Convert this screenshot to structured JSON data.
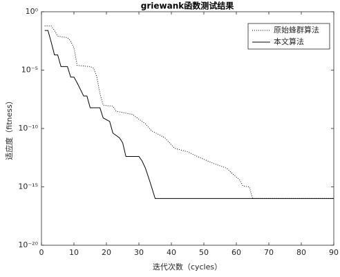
{
  "chart_data": {
    "type": "line",
    "title": "griewank函数测试结果",
    "x_label": "迭代次数（cycles）",
    "y_label": "适应度（fitness）",
    "log_y": true,
    "legend": "upper right",
    "xlim": [
      0,
      90
    ],
    "xticks": [
      0,
      10,
      20,
      30,
      40,
      50,
      60,
      70,
      80,
      90
    ],
    "ylim": [
      1e-20,
      1
    ],
    "yticks": [
      {
        "value": 1,
        "label": "10⁰"
      },
      {
        "value": 1e-05,
        "label": "10⁻⁵"
      },
      {
        "value": 1e-10,
        "label": "10⁻¹⁰"
      },
      {
        "value": 1e-15,
        "label": "10⁻¹⁵"
      },
      {
        "value": 1e-20,
        "label": "10⁻²⁰"
      }
    ],
    "series": [
      {
        "name": "原始蜂群算法",
        "color": "#000000",
        "style": "dotted",
        "x": [
          1,
          3,
          4,
          5,
          8,
          9,
          10,
          11,
          15,
          16,
          17,
          18,
          19,
          22,
          23,
          28,
          29,
          32,
          34,
          38,
          41,
          45,
          48,
          53,
          57,
          59,
          61,
          62,
          64,
          65,
          90
        ],
        "values": [
          0.06,
          0.06,
          0.025,
          0.008,
          0.006,
          0.003,
          0.0008,
          2.5e-05,
          2e-05,
          1.5e-05,
          3e-06,
          1e-07,
          1e-08,
          8e-09,
          3e-09,
          1.6e-09,
          1e-09,
          2.5e-10,
          6e-11,
          1.6e-11,
          2e-12,
          1e-12,
          4e-13,
          1e-13,
          4e-14,
          1.2e-14,
          4e-15,
          1.2e-15,
          1e-15,
          1e-16,
          1e-16
        ]
      },
      {
        "name": "本文算法",
        "color": "#000000",
        "style": "solid",
        "x": [
          1,
          2,
          3,
          4,
          5,
          6,
          8,
          9,
          10,
          11,
          13,
          14,
          15,
          17,
          18,
          19,
          21,
          22,
          24,
          25,
          26,
          30,
          31,
          32,
          33,
          34,
          35,
          90
        ],
        "values": [
          0.025,
          0.025,
          0.0025,
          0.0002,
          0.0002,
          2e-05,
          2e-05,
          2.5e-06,
          2.5e-06,
          8e-07,
          6e-08,
          6e-08,
          6e-09,
          6e-09,
          6e-09,
          8e-10,
          4e-10,
          4e-11,
          1.6e-11,
          6e-12,
          4e-13,
          4e-13,
          1.6e-13,
          4e-14,
          6e-15,
          8e-16,
          1e-16,
          1e-16
        ]
      }
    ]
  }
}
